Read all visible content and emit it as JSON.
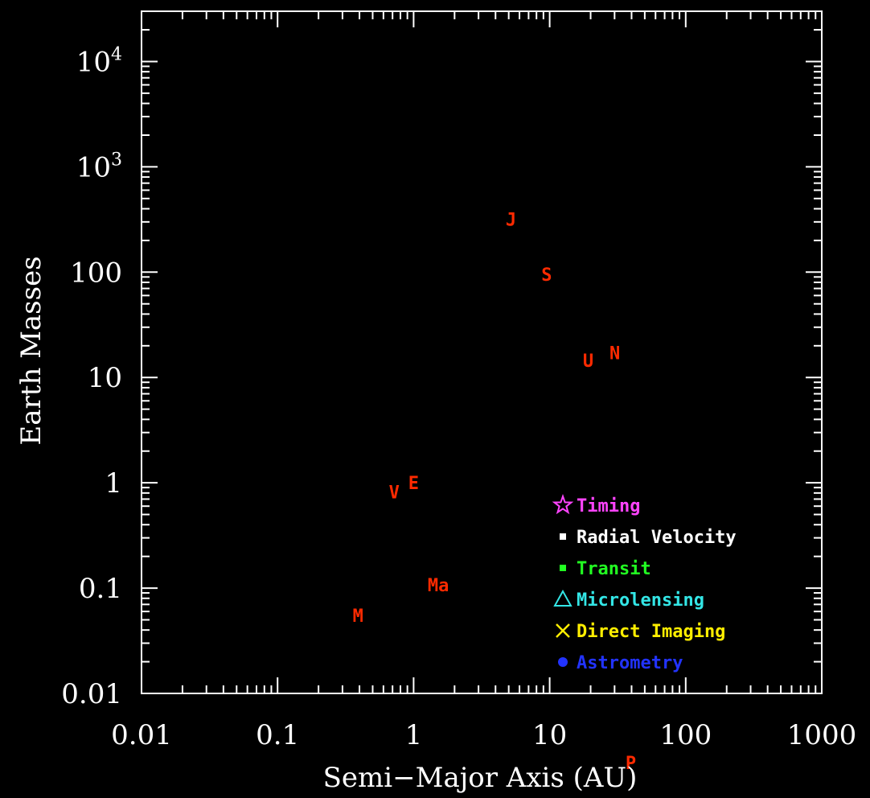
{
  "chart_data": {
    "type": "scatter",
    "title": "",
    "xlabel": "Semi−Major Axis (AU)",
    "ylabel": "Earth Masses",
    "x_scale": "log",
    "y_scale": "log",
    "xlim": [
      0.01,
      1000
    ],
    "ylim": [
      0.01,
      30000
    ],
    "x_ticks": [
      {
        "value": 0.01,
        "label": "0.01"
      },
      {
        "value": 0.1,
        "label": "0.1"
      },
      {
        "value": 1,
        "label": "1"
      },
      {
        "value": 10,
        "label": "10"
      },
      {
        "value": 100,
        "label": "100"
      },
      {
        "value": 1000,
        "label": "1000"
      }
    ],
    "y_ticks": [
      {
        "value": 0.01,
        "base": "0.01",
        "exp": ""
      },
      {
        "value": 0.1,
        "base": "0.1",
        "exp": ""
      },
      {
        "value": 1,
        "base": "1",
        "exp": ""
      },
      {
        "value": 10,
        "base": "10",
        "exp": ""
      },
      {
        "value": 100,
        "base": "100",
        "exp": ""
      },
      {
        "value": 1000,
        "base": "10",
        "exp": "3"
      },
      {
        "value": 10000,
        "base": "10",
        "exp": "4"
      }
    ],
    "planets": [
      {
        "label": "M",
        "x": 0.39,
        "y": 0.055
      },
      {
        "label": "V",
        "x": 0.72,
        "y": 0.82
      },
      {
        "label": "E",
        "x": 1.0,
        "y": 1.0
      },
      {
        "label": "Ma",
        "x": 1.52,
        "y": 0.107
      },
      {
        "label": "J",
        "x": 5.2,
        "y": 318
      },
      {
        "label": "S",
        "x": 9.5,
        "y": 95
      },
      {
        "label": "U",
        "x": 19.2,
        "y": 14.5
      },
      {
        "label": "N",
        "x": 30.1,
        "y": 17.1
      },
      {
        "label": "P",
        "x": 39.5,
        "y": 0.0022
      }
    ],
    "planet_color": "#ff2a00",
    "legend": {
      "placement": "bottom-right",
      "entries": [
        {
          "label": "Timing",
          "marker": "star",
          "color": "#ff44ff"
        },
        {
          "label": "Radial Velocity",
          "marker": "square",
          "color": "#ffffff"
        },
        {
          "label": "Transit",
          "marker": "square",
          "color": "#22ff22"
        },
        {
          "label": "Microlensing",
          "marker": "triangle",
          "color": "#33e6e6"
        },
        {
          "label": "Direct Imaging",
          "marker": "cross",
          "color": "#ffee00"
        },
        {
          "label": "Astrometry",
          "marker": "circle",
          "color": "#2233ff"
        }
      ]
    },
    "axis_color": "#ffffff",
    "background": "#000000",
    "grid": false
  }
}
